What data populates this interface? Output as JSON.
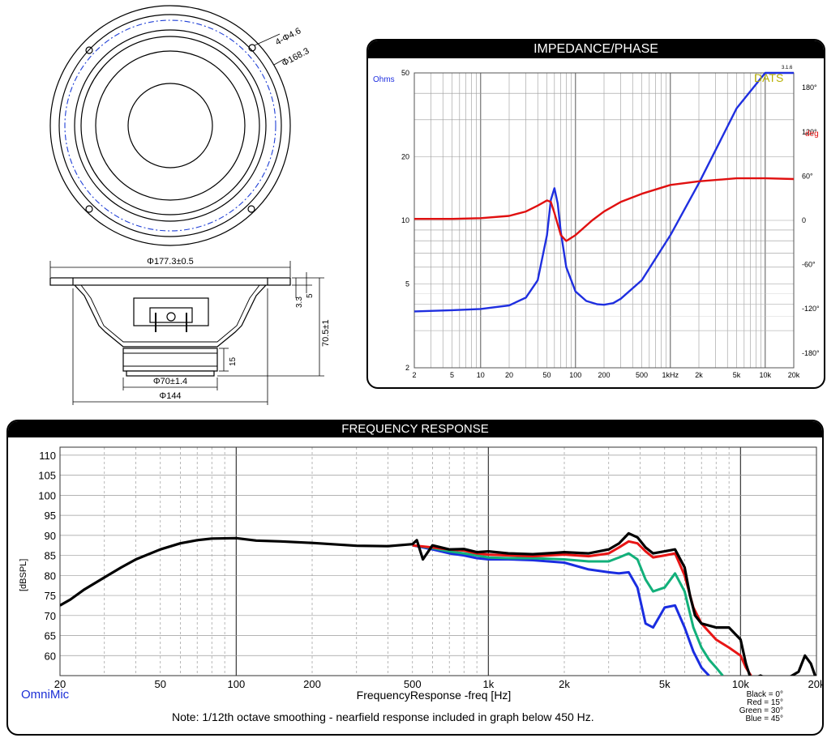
{
  "drawing": {
    "front": {
      "hole_label": "4-Φ4.6",
      "pcd_label": "Φ168.3"
    },
    "side": {
      "outer_dim": "Φ177.3±0.5",
      "dim_33": "3.3",
      "dim_5": "5",
      "depth_dim": "70.5±1",
      "magnet_h": "15",
      "magnet_dim": "Φ70±1.4",
      "basket_dim": "Φ144"
    },
    "colors": {
      "line": "#000000",
      "pcd": "#1f3fd6"
    }
  },
  "impedance": {
    "title": "IMPEDANCE/PHASE",
    "left_unit": "Ohms",
    "right_unit": "deg",
    "brand": "DATS",
    "version": "3.1.6",
    "colors": {
      "impedance": "#1f2fe0",
      "phase": "#e01010",
      "brand": "#b8b000"
    }
  },
  "frequency": {
    "title": "FREQUENCY RESPONSE",
    "ylabel": "[dBSPL]",
    "xlabel": "FrequencyResponse -freq [Hz]",
    "brand": "OmniMic",
    "note": "Note: 1/12th octave smoothing - nearfield response included in graph below 450 Hz.",
    "legend": [
      "Black = 0°",
      "Red = 15°",
      "Green = 30°",
      "Blue = 45°"
    ]
  },
  "chart_data": [
    {
      "type": "line",
      "title": "IMPEDANCE/PHASE",
      "x_scale": "log",
      "xlim": [
        2,
        20000
      ],
      "x_ticks": [
        2,
        5,
        10,
        20,
        50,
        100,
        200,
        500,
        1000,
        2000,
        5000,
        10000,
        20000
      ],
      "x_tick_labels": [
        "2",
        "5",
        "10",
        "20",
        "50",
        "100",
        "200",
        "500",
        "1kHz",
        "2k",
        "5k",
        "10k",
        "20k"
      ],
      "y_scale": "log",
      "ylim": [
        2,
        50
      ],
      "y_ticks": [
        2,
        5,
        10,
        20,
        50
      ],
      "y_tick_labels": [
        "2",
        "5",
        "10",
        "20",
        "50"
      ],
      "y2lim": [
        -200,
        200
      ],
      "y2_ticks": [
        180,
        120,
        60,
        0,
        -60,
        -120,
        -180
      ],
      "y2_tick_labels": [
        "180°",
        "120°",
        "60°",
        "0",
        "-60°",
        "-120°",
        "-180°"
      ],
      "grid": true,
      "series": [
        {
          "color": "#1f2fe0",
          "axis": "left",
          "x": [
            2,
            5,
            10,
            20,
            30,
            40,
            50,
            55,
            60,
            65,
            70,
            80,
            100,
            130,
            170,
            200,
            250,
            300,
            500,
            1000,
            2000,
            5000,
            10000,
            20000
          ],
          "y": [
            3.7,
            3.75,
            3.8,
            3.95,
            4.3,
            5.2,
            8.5,
            12.5,
            14.2,
            12.0,
            8.8,
            6.0,
            4.6,
            4.15,
            4.0,
            3.98,
            4.05,
            4.25,
            5.2,
            8.5,
            15.0,
            34.0,
            50.0,
            50.0
          ]
        },
        {
          "color": "#e01010",
          "axis": "right",
          "x": [
            2,
            5,
            10,
            20,
            30,
            40,
            50,
            55,
            60,
            70,
            80,
            100,
            150,
            200,
            300,
            500,
            1000,
            2000,
            5000,
            10000,
            20000
          ],
          "y": [
            2,
            2,
            3,
            6,
            12,
            20,
            27,
            25,
            10,
            -20,
            -28,
            -20,
            0,
            12,
            25,
            36,
            48,
            53,
            57,
            57,
            56
          ]
        }
      ]
    },
    {
      "type": "line",
      "title": "FREQUENCY RESPONSE",
      "xlabel": "FrequencyResponse -freq [Hz]",
      "ylabel": "[dBSPL]",
      "x_scale": "log",
      "xlim": [
        20,
        20000
      ],
      "x_ticks": [
        20,
        50,
        100,
        200,
        500,
        1000,
        2000,
        5000,
        10000,
        20000
      ],
      "x_tick_labels": [
        "20",
        "50",
        "100",
        "200",
        "500",
        "1k",
        "2k",
        "5k",
        "10k",
        "20k"
      ],
      "ylim": [
        55,
        112
      ],
      "y_ticks": [
        60,
        65,
        70,
        75,
        80,
        85,
        90,
        95,
        100,
        105,
        110
      ],
      "grid": true,
      "legend_position": "bottom-right",
      "series": [
        {
          "color": "#000000",
          "x": [
            20,
            22,
            25,
            30,
            35,
            40,
            50,
            60,
            70,
            80,
            100,
            120,
            150,
            200,
            300,
            400,
            500,
            520,
            550,
            600,
            700,
            800,
            900,
            1000,
            1200,
            1500,
            1800,
            2000,
            2500,
            3000,
            3300,
            3600,
            3900,
            4200,
            4500,
            5000,
            5500,
            6000,
            6300,
            6600,
            7000,
            8000,
            9000,
            10000,
            10500,
            11000,
            12000,
            13000,
            14000,
            15000,
            16000,
            17000,
            18000,
            19000,
            20000
          ],
          "y": [
            72.5,
            74,
            76.5,
            79.5,
            82,
            84,
            86.5,
            88,
            88.8,
            89.2,
            89.3,
            88.7,
            88.5,
            88.1,
            87.4,
            87.3,
            87.8,
            88.8,
            84,
            87.5,
            86.5,
            86.6,
            85.8,
            86.0,
            85.5,
            85.3,
            85.6,
            85.8,
            85.5,
            86.5,
            88,
            90.5,
            89.5,
            87,
            85.5,
            86,
            86.5,
            82,
            75,
            70,
            68,
            67,
            67,
            64,
            58,
            54,
            55,
            54,
            53,
            54,
            55,
            56,
            60,
            58,
            54
          ]
        },
        {
          "color": "#e81515",
          "x": [
            500,
            600,
            700,
            800,
            900,
            1000,
            1200,
            1500,
            2000,
            2500,
            3000,
            3300,
            3600,
            3900,
            4200,
            4500,
            5000,
            5500,
            6000,
            6500,
            7000,
            8000,
            9000,
            10000,
            10500,
            11000
          ],
          "y": [
            87.5,
            87,
            86.5,
            86.2,
            85.5,
            85.2,
            85.0,
            84.8,
            85.2,
            84.8,
            85.5,
            87,
            88.5,
            88,
            86,
            84.5,
            85,
            85.5,
            80,
            72,
            68,
            64,
            62,
            60,
            57,
            55
          ]
        },
        {
          "color": "#12b07a",
          "x": [
            500,
            600,
            700,
            800,
            900,
            1000,
            1200,
            1500,
            2000,
            2500,
            3000,
            3300,
            3600,
            3900,
            4200,
            4500,
            5000,
            5500,
            6000,
            6500,
            7000,
            7500,
            8000,
            8500
          ],
          "y": [
            87.5,
            86.8,
            86,
            85.5,
            85,
            84.5,
            84.3,
            84.3,
            84,
            83.5,
            83.5,
            84.5,
            85.5,
            84,
            79,
            76,
            77,
            80.5,
            76,
            67,
            62,
            59,
            57,
            55
          ]
        },
        {
          "color": "#1a2de0",
          "x": [
            500,
            600,
            700,
            800,
            900,
            1000,
            1200,
            1500,
            2000,
            2500,
            3000,
            3300,
            3600,
            3900,
            4200,
            4500,
            5000,
            5500,
            6000,
            6500,
            7000,
            7500
          ],
          "y": [
            87.5,
            86.5,
            85.5,
            85,
            84.3,
            84,
            84,
            83.8,
            83.2,
            81.5,
            80.8,
            80.5,
            80.8,
            77,
            68,
            67,
            72,
            72.5,
            67,
            61,
            57,
            55
          ]
        }
      ]
    }
  ]
}
